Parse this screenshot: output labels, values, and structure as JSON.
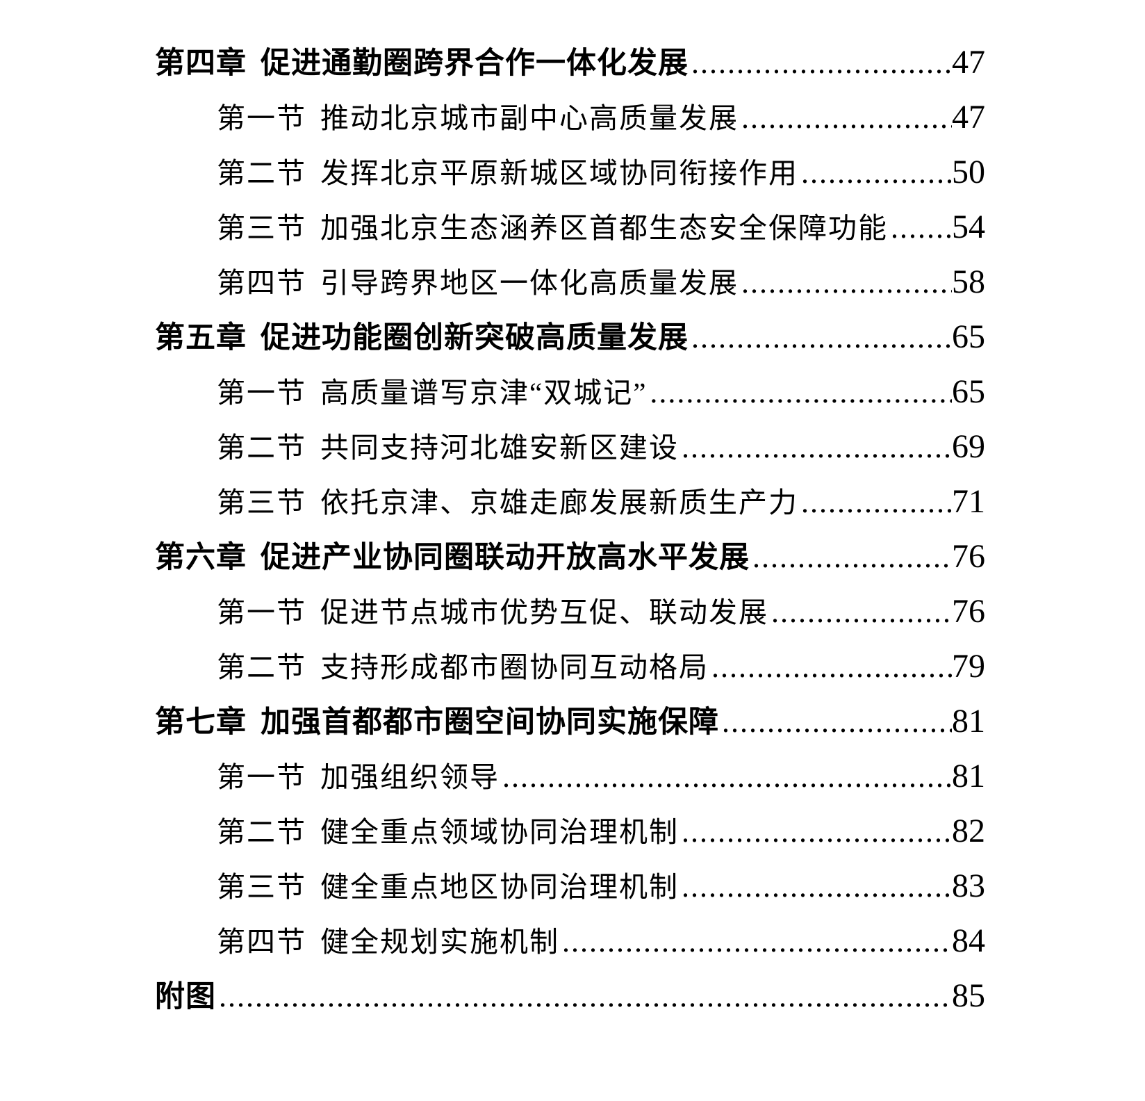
{
  "page": {
    "background_color": "#ffffff",
    "text_color": "#000000",
    "kind": "table-of-contents"
  },
  "toc": {
    "leader_char": ".",
    "entries": [
      {
        "level": "chapter",
        "label": "第四章",
        "title": "促进通勤圈跨界合作一体化发展",
        "page": "47"
      },
      {
        "level": "section",
        "label": "第一节",
        "title": "推动北京城市副中心高质量发展",
        "page": "47"
      },
      {
        "level": "section",
        "label": "第二节",
        "title": "发挥北京平原新城区域协同衔接作用",
        "page": "50"
      },
      {
        "level": "section",
        "label": "第三节",
        "title": "加强北京生态涵养区首都生态安全保障功能",
        "page": "54"
      },
      {
        "level": "section",
        "label": "第四节",
        "title": "引导跨界地区一体化高质量发展",
        "page": "58"
      },
      {
        "level": "chapter",
        "label": "第五章",
        "title": "促进功能圈创新突破高质量发展",
        "page": "65"
      },
      {
        "level": "section",
        "label": "第一节",
        "title": "高质量谱写京津“双城记”",
        "page": "65"
      },
      {
        "level": "section",
        "label": "第二节",
        "title": "共同支持河北雄安新区建设",
        "page": "69"
      },
      {
        "level": "section",
        "label": "第三节",
        "title": "依托京津、京雄走廊发展新质生产力",
        "page": "71"
      },
      {
        "level": "chapter",
        "label": "第六章",
        "title": "促进产业协同圈联动开放高水平发展",
        "page": "76"
      },
      {
        "level": "section",
        "label": "第一节",
        "title": "促进节点城市优势互促、联动发展",
        "page": "76"
      },
      {
        "level": "section",
        "label": "第二节",
        "title": "支持形成都市圈协同互动格局",
        "page": "79"
      },
      {
        "level": "chapter",
        "label": "第七章",
        "title": "加强首都都市圈空间协同实施保障",
        "page": "81"
      },
      {
        "level": "section",
        "label": "第一节",
        "title": "加强组织领导",
        "page": "81"
      },
      {
        "level": "section",
        "label": "第二节",
        "title": "健全重点领域协同治理机制",
        "page": "82"
      },
      {
        "level": "section",
        "label": "第三节",
        "title": "健全重点地区协同治理机制",
        "page": "83"
      },
      {
        "level": "section",
        "label": "第四节",
        "title": "健全规划实施机制",
        "page": "84"
      },
      {
        "level": "chapter",
        "label": "附图",
        "title": "",
        "page": "85"
      }
    ]
  }
}
